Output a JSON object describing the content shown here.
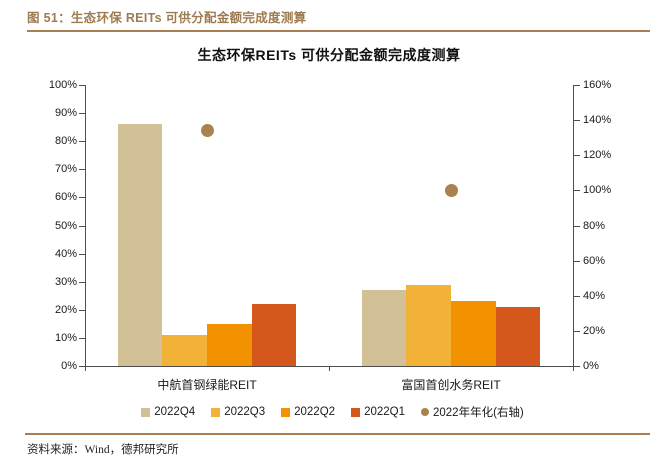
{
  "header": {
    "title": "图 51：生态环保 REITs 可供分配金额完成度测算"
  },
  "source": {
    "text": "资料来源：Wind，德邦研究所"
  },
  "colors": {
    "accent_brown": "#9E7B50",
    "divider": "#A87E52",
    "axis": "#4D4D4D"
  },
  "chart_data": {
    "type": "bar",
    "title": "生态环保REITs 可供分配金额完成度测算",
    "categories": [
      "中航首钢绿能REIT",
      "富国首创水务REIT"
    ],
    "series": [
      {
        "name": "2022Q4",
        "type": "bar",
        "axis": "left",
        "color": "#D2C196",
        "values": [
          86,
          27
        ]
      },
      {
        "name": "2022Q3",
        "type": "bar",
        "axis": "left",
        "color": "#F2B237",
        "values": [
          11,
          29
        ]
      },
      {
        "name": "2022Q2",
        "type": "bar",
        "axis": "left",
        "color": "#F39200",
        "values": [
          15,
          23
        ]
      },
      {
        "name": "2022Q1",
        "type": "bar",
        "axis": "left",
        "color": "#D4581C",
        "values": [
          22,
          21
        ]
      },
      {
        "name": "2022年年化(右轴)",
        "type": "point",
        "axis": "right",
        "color": "#A9824F",
        "values": [
          134,
          100
        ]
      }
    ],
    "left_axis": {
      "min": 0,
      "max": 100,
      "step": 10,
      "suffix": "%"
    },
    "right_axis": {
      "min": 0,
      "max": 160,
      "step": 20,
      "suffix": "%"
    },
    "legend_position": "bottom",
    "grid": false
  }
}
